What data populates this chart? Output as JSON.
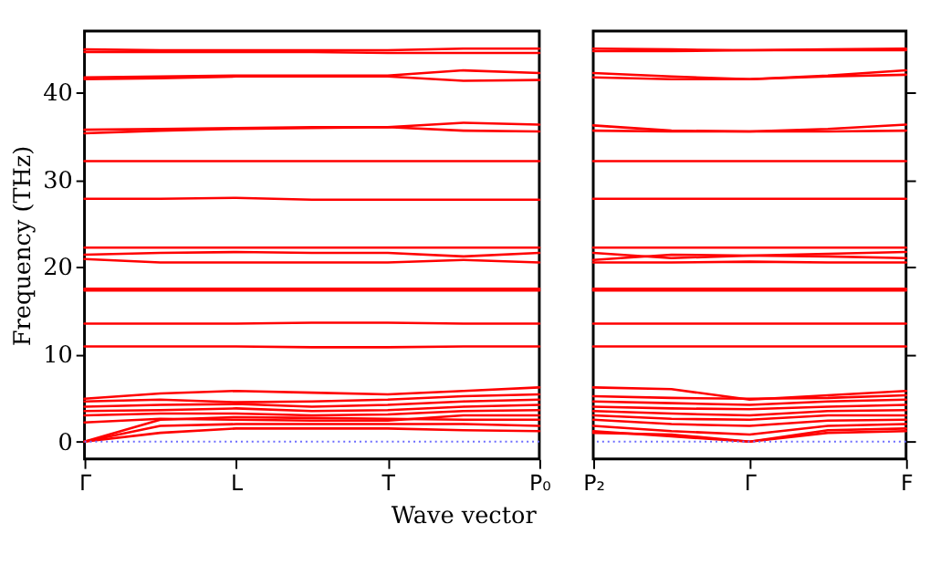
{
  "chart_data": [
    {
      "type": "line",
      "ylabel": "Frequency (THz)",
      "xlabel": "Wave vector",
      "categories": [
        "Γ",
        null,
        "L",
        null,
        "T",
        null,
        "P₀"
      ],
      "ylim": [
        -2,
        47
      ],
      "yticks": [
        0,
        10,
        20,
        30,
        40
      ],
      "grid": false,
      "legend": false,
      "line_style": "solid",
      "ref_lines": [
        {
          "axis": "y",
          "value": 0,
          "color": "#6b6bff",
          "line_style": "dotted"
        }
      ],
      "series": [
        {
          "color": "#ff0000",
          "values": [
            44.6,
            44.6,
            44.6,
            44.6,
            44.5,
            44.5,
            44.5
          ]
        },
        {
          "color": "#ff0000",
          "values": [
            44.9,
            44.8,
            44.8,
            44.8,
            44.8,
            45.0,
            45.0
          ]
        },
        {
          "color": "#ff0000",
          "values": [
            41.5,
            41.6,
            41.8,
            41.8,
            41.8,
            41.3,
            41.4
          ]
        },
        {
          "color": "#ff0000",
          "values": [
            41.7,
            41.8,
            41.9,
            41.9,
            41.9,
            42.5,
            42.2
          ]
        },
        {
          "color": "#ff0000",
          "values": [
            35.3,
            35.6,
            35.8,
            35.9,
            36.0,
            35.6,
            35.5
          ]
        },
        {
          "color": "#ff0000",
          "values": [
            35.7,
            35.8,
            35.9,
            36.0,
            36.0,
            36.5,
            36.3
          ]
        },
        {
          "color": "#ff0000",
          "values": [
            32.1,
            32.1,
            32.1,
            32.1,
            32.1,
            32.1,
            32.1
          ]
        },
        {
          "color": "#ff0000",
          "values": [
            27.8,
            27.8,
            27.9,
            27.7,
            27.7,
            27.7,
            27.7
          ]
        },
        {
          "color": "#ff0000",
          "values": [
            22.2,
            22.2,
            22.2,
            22.2,
            22.2,
            22.2,
            22.2
          ]
        },
        {
          "color": "#ff0000",
          "values": [
            21.4,
            21.6,
            21.7,
            21.6,
            21.6,
            21.2,
            21.6
          ]
        },
        {
          "color": "#ff0000",
          "values": [
            20.9,
            20.5,
            20.5,
            20.5,
            20.5,
            20.8,
            20.5
          ]
        },
        {
          "color": "#ff0000",
          "values": [
            17.3,
            17.3,
            17.3,
            17.3,
            17.3,
            17.3,
            17.3
          ]
        },
        {
          "color": "#ff0000",
          "values": [
            17.5,
            17.5,
            17.5,
            17.5,
            17.5,
            17.5,
            17.5
          ]
        },
        {
          "color": "#ff0000",
          "values": [
            13.5,
            13.5,
            13.5,
            13.6,
            13.6,
            13.5,
            13.5
          ]
        },
        {
          "color": "#ff0000",
          "values": [
            10.9,
            10.9,
            10.9,
            10.8,
            10.8,
            10.9,
            10.9
          ]
        },
        {
          "color": "#ff0000",
          "values": [
            4.9,
            5.5,
            5.8,
            5.6,
            5.4,
            5.8,
            6.2
          ]
        },
        {
          "color": "#ff0000",
          "values": [
            4.6,
            4.8,
            4.5,
            4.6,
            4.8,
            5.2,
            5.4
          ]
        },
        {
          "color": "#ff0000",
          "values": [
            4.0,
            4.2,
            4.3,
            4.0,
            4.2,
            4.6,
            4.8
          ]
        },
        {
          "color": "#ff0000",
          "values": [
            3.5,
            3.6,
            3.8,
            3.5,
            3.6,
            4.0,
            4.2
          ]
        },
        {
          "color": "#ff0000",
          "values": [
            3.0,
            3.2,
            3.2,
            3.0,
            3.1,
            3.5,
            3.6
          ]
        },
        {
          "color": "#ff0000",
          "values": [
            2.2,
            2.6,
            2.5,
            2.4,
            2.4,
            3.0,
            3.0
          ]
        },
        {
          "color": "#ff0000",
          "values": [
            0,
            2.5,
            2.8,
            2.7,
            2.6,
            2.5,
            2.5
          ]
        },
        {
          "color": "#ff0000",
          "values": [
            0,
            1.8,
            2.0,
            2.0,
            2.0,
            2.0,
            1.8
          ]
        },
        {
          "color": "#ff0000",
          "values": [
            0,
            1.0,
            1.5,
            1.5,
            1.5,
            1.3,
            1.2
          ]
        }
      ]
    },
    {
      "type": "line",
      "categories": [
        "P₂",
        null,
        "Γ",
        null,
        "F"
      ],
      "ylim": [
        -2,
        47
      ],
      "yticks": [
        0,
        10,
        20,
        30,
        40
      ],
      "tick_labels": "x",
      "grid": false,
      "legend": false,
      "line_style": "solid",
      "ref_lines": [
        {
          "axis": "y",
          "value": 0,
          "color": "#6b6bff",
          "line_style": "dotted"
        }
      ],
      "series": [
        {
          "color": "#ff0000",
          "values": [
            44.7,
            44.7,
            44.8,
            44.8,
            44.8
          ]
        },
        {
          "color": "#ff0000",
          "values": [
            45.0,
            44.9,
            44.8,
            44.9,
            45.0
          ]
        },
        {
          "color": "#ff0000",
          "values": [
            42.2,
            41.8,
            41.5,
            41.8,
            42.0
          ]
        },
        {
          "color": "#ff0000",
          "values": [
            41.7,
            41.5,
            41.5,
            41.9,
            42.5
          ]
        },
        {
          "color": "#ff0000",
          "values": [
            36.2,
            35.6,
            35.5,
            35.8,
            36.3
          ]
        },
        {
          "color": "#ff0000",
          "values": [
            35.6,
            35.5,
            35.5,
            35.5,
            35.6
          ]
        },
        {
          "color": "#ff0000",
          "values": [
            32.1,
            32.1,
            32.1,
            32.1,
            32.1
          ]
        },
        {
          "color": "#ff0000",
          "values": [
            27.8,
            27.8,
            27.8,
            27.8,
            27.8
          ]
        },
        {
          "color": "#ff0000",
          "values": [
            22.2,
            22.2,
            22.2,
            22.2,
            22.2
          ]
        },
        {
          "color": "#ff0000",
          "values": [
            21.6,
            21.0,
            21.3,
            21.5,
            21.7
          ]
        },
        {
          "color": "#ff0000",
          "values": [
            20.8,
            21.4,
            21.3,
            21.2,
            21.0
          ]
        },
        {
          "color": "#ff0000",
          "values": [
            20.5,
            20.5,
            20.6,
            20.5,
            20.5
          ]
        },
        {
          "color": "#ff0000",
          "values": [
            17.3,
            17.3,
            17.3,
            17.3,
            17.3
          ]
        },
        {
          "color": "#ff0000",
          "values": [
            17.5,
            17.5,
            17.5,
            17.5,
            17.5
          ]
        },
        {
          "color": "#ff0000",
          "values": [
            13.5,
            13.5,
            13.5,
            13.5,
            13.5
          ]
        },
        {
          "color": "#ff0000",
          "values": [
            10.9,
            10.9,
            10.9,
            10.9,
            10.9
          ]
        },
        {
          "color": "#ff0000",
          "values": [
            6.2,
            6.0,
            4.8,
            5.3,
            5.8
          ]
        },
        {
          "color": "#ff0000",
          "values": [
            5.2,
            5.0,
            4.9,
            5.0,
            5.3
          ]
        },
        {
          "color": "#ff0000",
          "values": [
            4.6,
            4.4,
            4.2,
            4.6,
            4.8
          ]
        },
        {
          "color": "#ff0000",
          "values": [
            4.0,
            3.8,
            3.7,
            4.0,
            4.2
          ]
        },
        {
          "color": "#ff0000",
          "values": [
            3.5,
            3.2,
            3.0,
            3.5,
            3.6
          ]
        },
        {
          "color": "#ff0000",
          "values": [
            3.0,
            2.6,
            2.5,
            3.0,
            3.0
          ]
        },
        {
          "color": "#ff0000",
          "values": [
            2.5,
            2.0,
            1.8,
            2.4,
            2.5
          ]
        },
        {
          "color": "#ff0000",
          "values": [
            1.8,
            1.2,
            0.8,
            1.8,
            2.0
          ]
        },
        {
          "color": "#ff0000",
          "values": [
            1.2,
            0.6,
            0,
            1.3,
            1.5
          ]
        },
        {
          "color": "#ff0000",
          "values": [
            1.0,
            0.8,
            0,
            1.0,
            1.2
          ]
        }
      ]
    }
  ]
}
